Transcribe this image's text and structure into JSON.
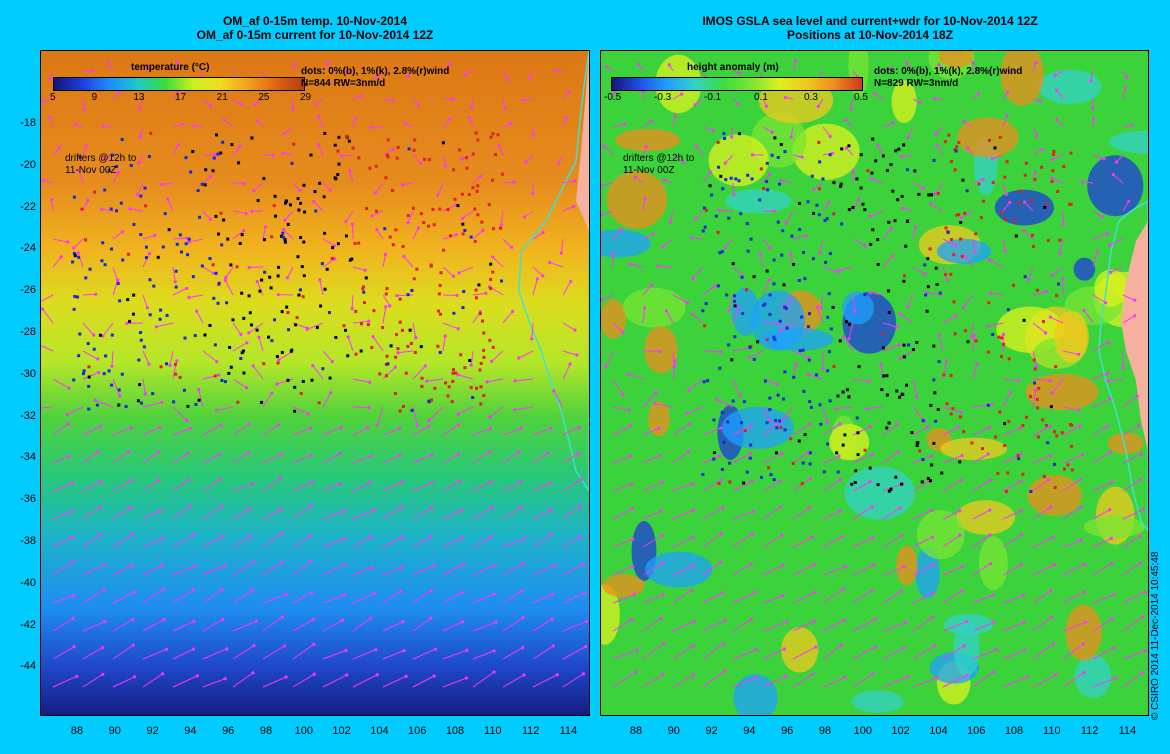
{
  "left_panel": {
    "title_line1": "OM_af 0-15m temp. 10-Nov-2014",
    "title_line2": "OM_af 0-15m current for 10-Nov-2014 12Z",
    "colorbar": {
      "title": "temperature (°C)",
      "ticks": [
        "5",
        "9",
        "13",
        "17",
        "21",
        "25",
        "29"
      ],
      "colors": [
        "#14147a",
        "#1e3cdc",
        "#1e8cff",
        "#1ec8c8",
        "#3cdc3c",
        "#c8f01e",
        "#f0dc1e",
        "#f0a01e",
        "#e06414",
        "#b43c14"
      ]
    },
    "stats_line1": "dots: 0%(b), 1%(k), 2.8%(r)wind",
    "stats_line2": "N=844 RW=3nm/d",
    "note_line1": "drifters @12h to",
    "note_line2": "11-Nov 00Z"
  },
  "right_panel": {
    "title_line1": "IMOS GSLA sea level and current+wdr for 10-Nov-2014 12Z",
    "title_line2": "Positions at 10-Nov-2014 18Z",
    "colorbar": {
      "title": "height anomaly (m)",
      "ticks": [
        "-0.5",
        "-0.3",
        "-0.1",
        "0.1",
        "0.3",
        "0.5"
      ],
      "colors": [
        "#14147a",
        "#1e50e6",
        "#1ea0ff",
        "#32d2c8",
        "#3cdc3c",
        "#78e632",
        "#dcf01e",
        "#f0c81e",
        "#f08c1e",
        "#c83c14"
      ]
    },
    "stats_line1": "dots: 0%(b), 1%(k), 2.8%(r)wind",
    "stats_line2": "N=829 RW=3nm/d",
    "note_line1": "drifters @12h to",
    "note_line2": "11-Nov 00Z"
  },
  "lat_labels": [
    "-18",
    "-20",
    "-22",
    "-24",
    "-26",
    "-28",
    "-30",
    "-32",
    "-34",
    "-36",
    "-38",
    "-40",
    "-42",
    "-44"
  ],
  "lon_labels": [
    "88",
    "90",
    "92",
    "94",
    "96",
    "98",
    "100",
    "102",
    "104",
    "106",
    "108",
    "110",
    "112",
    "114"
  ],
  "copyright": "© CSIRO 2014   11-Dec-2014 10:45:48",
  "colors": {
    "background": "#00ccff",
    "vector": "#ff33ff",
    "land": "#f5b0a0",
    "coast": "#40e0d0"
  }
}
